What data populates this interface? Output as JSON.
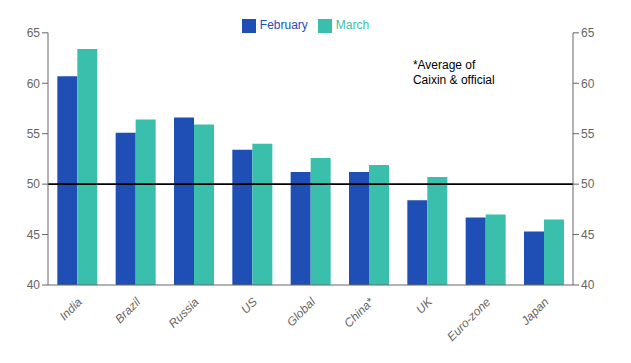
{
  "chart_data": {
    "type": "bar",
    "categories": [
      "India",
      "Brazil",
      "Russia",
      "US",
      "Global",
      "China*",
      "UK",
      "Euro-zone",
      "Japan"
    ],
    "series": [
      {
        "name": "February",
        "color": "#1f4eb4",
        "values": [
          60.7,
          55.1,
          56.6,
          53.4,
          51.2,
          51.2,
          48.4,
          46.7,
          45.3
        ]
      },
      {
        "name": "March",
        "color": "#3bbfad",
        "values": [
          63.4,
          56.4,
          55.9,
          54.0,
          52.6,
          51.9,
          50.7,
          47.0,
          46.5
        ]
      }
    ],
    "ylim": [
      40,
      65
    ],
    "yticks": [
      40,
      45,
      50,
      55,
      60,
      65
    ],
    "y2lim": [
      40,
      65
    ],
    "y2ticks": [
      40,
      45,
      50,
      55,
      60,
      65
    ],
    "reference_line": 50,
    "annotation": "*Average of\nCaixin & official",
    "legend": "top",
    "grid": false
  }
}
